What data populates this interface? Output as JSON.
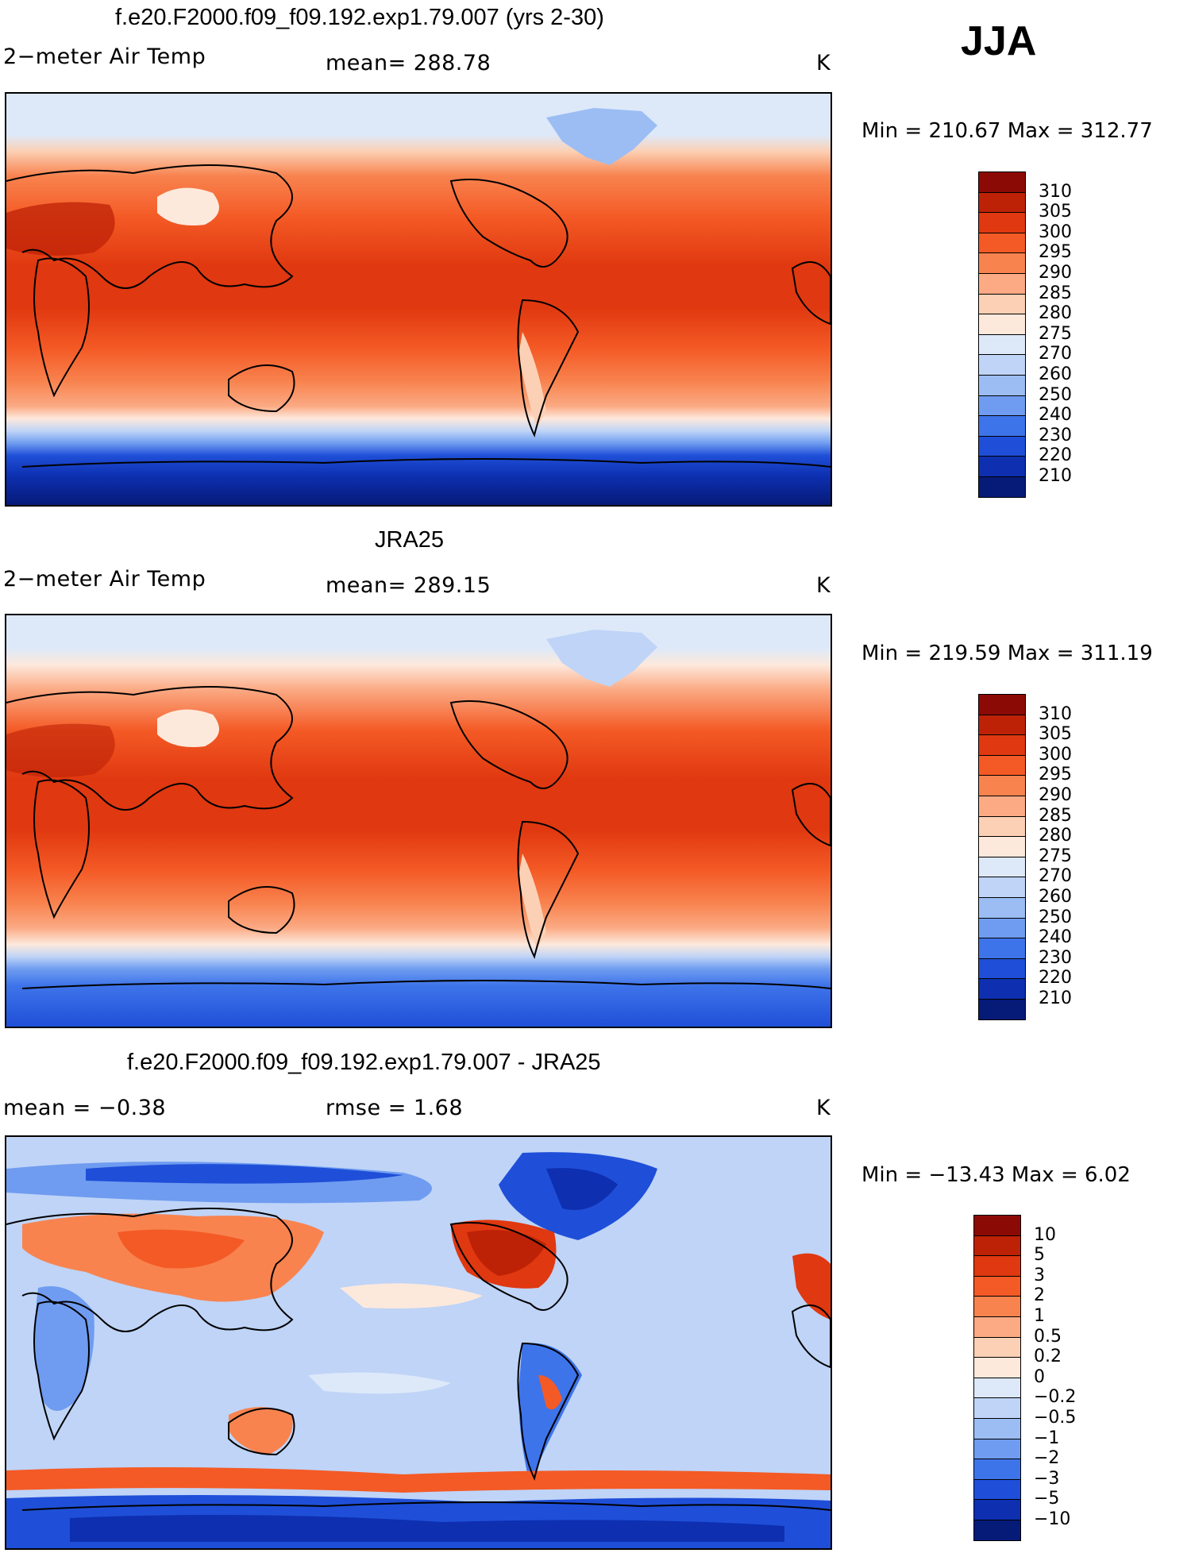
{
  "season": "JJA",
  "panels": [
    {
      "title": "f.e20.F2000.f09_f09.192.exp1.79.007 (yrs 2-30)",
      "left_label": "2−meter Air Temp",
      "center_label": "mean=  288.78",
      "units": "K",
      "minmax": "Min  =  210.67  Max  =  312.77",
      "colorbar": {
        "labels": [
          "310",
          "305",
          "300",
          "295",
          "290",
          "285",
          "280",
          "275",
          "270",
          "260",
          "250",
          "240",
          "230",
          "220",
          "210"
        ],
        "colors": [
          "#8c0a05",
          "#bd2207",
          "#e03810",
          "#f45a25",
          "#f8834f",
          "#fbaa84",
          "#fcd0b4",
          "#fde9dc",
          "#dde9f9",
          "#bfd4f7",
          "#9bbdf4",
          "#6f9cf0",
          "#3e74ea",
          "#1f4fd8",
          "#0d2fb0",
          "#061a78"
        ]
      }
    },
    {
      "title": "JRA25",
      "left_label": "2−meter Air Temp",
      "center_label": "mean=  289.15",
      "units": "K",
      "minmax": "Min  =  219.59  Max  =  311.19",
      "colorbar": {
        "labels": [
          "310",
          "305",
          "300",
          "295",
          "290",
          "285",
          "280",
          "275",
          "270",
          "260",
          "250",
          "240",
          "230",
          "220",
          "210"
        ],
        "colors": [
          "#8c0a05",
          "#bd2207",
          "#e03810",
          "#f45a25",
          "#f8834f",
          "#fbaa84",
          "#fcd0b4",
          "#fde9dc",
          "#dde9f9",
          "#bfd4f7",
          "#9bbdf4",
          "#6f9cf0",
          "#3e74ea",
          "#1f4fd8",
          "#0d2fb0",
          "#061a78"
        ]
      }
    },
    {
      "title": "f.e20.F2000.f09_f09.192.exp1.79.007 - JRA25",
      "left_label": "mean  =    −0.38",
      "center_label": "rmse  =      1.68",
      "units": "K",
      "minmax": "Min  =  −13.43  Max  =       6.02",
      "colorbar": {
        "labels": [
          "10",
          "5",
          "3",
          "2",
          "1",
          "0.5",
          "0.2",
          "0",
          "−0.2",
          "−0.5",
          "−1",
          "−2",
          "−3",
          "−5",
          "−10"
        ],
        "colors": [
          "#8c0a05",
          "#bd2207",
          "#e03810",
          "#f45a25",
          "#f8834f",
          "#fbaa84",
          "#fcd0b4",
          "#fde9dc",
          "#dde9f9",
          "#bfd4f7",
          "#9bbdf4",
          "#6f9cf0",
          "#3e74ea",
          "#1f4fd8",
          "#0d2fb0",
          "#061a78"
        ]
      }
    }
  ]
}
